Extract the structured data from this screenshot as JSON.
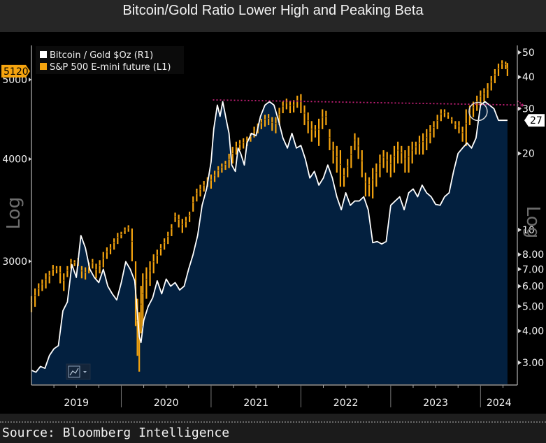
{
  "title": "Bitcoin/Gold Ratio Lower High and Peaking Beta",
  "source": "Source: Bloomberg Intelligence",
  "chart_controls": {
    "chart_type_icon": "line-chart-icon",
    "dropdown_icon": "chevron-down-icon"
  },
  "colors": {
    "background": "#000000",
    "area_fill": "#03203f",
    "bitcoin_line": "#ffffff",
    "sp500_bars": "#f5a40f",
    "trendline": "#c8207a",
    "badge_orange": "#f5a40f",
    "axis": "#b4b4b4"
  },
  "chart_data": {
    "type": "line",
    "title": "Bitcoin/Gold Ratio Lower High and Peaking Beta",
    "x_axis": {
      "type": "time",
      "range": [
        2019.0,
        2024.43
      ],
      "tick_labels": [
        "2019",
        "2020",
        "2021",
        "2022",
        "2023",
        "2024"
      ]
    },
    "y_axis_left": {
      "label": "Log",
      "scale": "log",
      "range": [
        2480,
        5250
      ],
      "tick_labels": [
        "3000",
        "4000",
        "5000"
      ],
      "tick_values": [
        3000,
        4000,
        5000
      ]
    },
    "y_axis_right": {
      "label": "Log",
      "scale": "log",
      "range": [
        2.75,
        54
      ],
      "tick_labels": [
        "3.00",
        "4.00",
        "5.00",
        "6.00",
        "7.00",
        "8.00",
        "10",
        "20",
        "30",
        "40",
        "50"
      ],
      "tick_values": [
        3,
        4,
        5,
        6,
        7,
        8,
        10,
        20,
        30,
        40,
        50
      ]
    },
    "legend": {
      "position": "top-left",
      "entries": [
        {
          "name": "Bitcoin / Gold $Oz (R1)",
          "color": "#ffffff"
        },
        {
          "name": "S&P 500 E-mini future (L1)",
          "color": "#f5a40f"
        }
      ]
    },
    "last_value_badges": {
      "left": "5120",
      "right": "27"
    },
    "series": [
      {
        "name": "Bitcoin / Gold $Oz (R1)",
        "axis": "right",
        "style": "area-line",
        "x": [
          2019.0,
          2019.05,
          2019.1,
          2019.15,
          2019.2,
          2019.25,
          2019.3,
          2019.35,
          2019.4,
          2019.45,
          2019.5,
          2019.55,
          2019.6,
          2019.65,
          2019.7,
          2019.75,
          2019.8,
          2019.85,
          2019.9,
          2019.95,
          2020.0,
          2020.05,
          2020.1,
          2020.15,
          2020.2,
          2020.22,
          2020.25,
          2020.3,
          2020.35,
          2020.4,
          2020.45,
          2020.5,
          2020.55,
          2020.6,
          2020.65,
          2020.7,
          2020.75,
          2020.8,
          2020.85,
          2020.9,
          2020.95,
          2021.0,
          2021.03,
          2021.07,
          2021.1,
          2021.13,
          2021.17,
          2021.2,
          2021.23,
          2021.27,
          2021.3,
          2021.33,
          2021.37,
          2021.4,
          2021.45,
          2021.5,
          2021.55,
          2021.6,
          2021.65,
          2021.7,
          2021.75,
          2021.8,
          2021.85,
          2021.9,
          2021.95,
          2022.0,
          2022.05,
          2022.1,
          2022.15,
          2022.2,
          2022.25,
          2022.3,
          2022.35,
          2022.4,
          2022.45,
          2022.5,
          2022.55,
          2022.6,
          2022.65,
          2022.7,
          2022.75,
          2022.8,
          2022.85,
          2022.9,
          2022.95,
          2023.0,
          2023.05,
          2023.1,
          2023.15,
          2023.2,
          2023.25,
          2023.3,
          2023.35,
          2023.4,
          2023.45,
          2023.5,
          2023.55,
          2023.6,
          2023.65,
          2023.7,
          2023.75,
          2023.8,
          2023.85,
          2023.9,
          2023.95,
          2024.0,
          2024.05,
          2024.1,
          2024.15,
          2024.2,
          2024.25,
          2024.3
        ],
        "values": [
          2.8,
          2.75,
          2.9,
          2.85,
          3.2,
          3.4,
          3.5,
          4.8,
          5.2,
          7.3,
          6.5,
          9.5,
          8.5,
          7.0,
          6.5,
          6.2,
          7.0,
          6.0,
          5.6,
          5.3,
          6.2,
          7.5,
          7.0,
          6.3,
          3.8,
          3.6,
          4.4,
          5.0,
          5.4,
          6.3,
          5.6,
          6.4,
          6.0,
          6.2,
          5.8,
          6.0,
          7.0,
          8.0,
          9.5,
          12.5,
          14.5,
          18.5,
          25,
          31,
          28,
          32,
          27,
          24,
          18,
          17,
          21,
          20,
          18,
          22,
          24,
          23.5,
          28,
          31,
          32,
          31,
          27,
          23,
          21,
          24,
          21,
          21.5,
          19,
          16,
          17,
          15,
          16,
          18,
          16,
          13.5,
          12,
          14,
          12.5,
          13,
          13,
          13.5,
          12,
          8.9,
          9.0,
          8.8,
          9.0,
          12.5,
          13,
          13.5,
          12,
          14,
          14.5,
          13.5,
          15,
          14,
          13.5,
          12.6,
          12.5,
          13.5,
          14,
          17,
          20,
          21,
          22,
          21,
          23,
          31,
          32,
          31,
          30,
          27,
          27,
          27
        ]
      },
      {
        "name": "S&P 500 E-mini future (L1)",
        "axis": "left",
        "style": "ohlc-bars",
        "x": [
          2019.0,
          2019.04,
          2019.08,
          2019.12,
          2019.16,
          2019.2,
          2019.24,
          2019.28,
          2019.32,
          2019.36,
          2019.4,
          2019.44,
          2019.48,
          2019.52,
          2019.56,
          2019.6,
          2019.64,
          2019.68,
          2019.72,
          2019.76,
          2019.8,
          2019.84,
          2019.88,
          2019.92,
          2019.96,
          2020.0,
          2020.04,
          2020.08,
          2020.12,
          2020.16,
          2020.18,
          2020.2,
          2020.22,
          2020.24,
          2020.28,
          2020.32,
          2020.36,
          2020.4,
          2020.44,
          2020.48,
          2020.52,
          2020.56,
          2020.6,
          2020.64,
          2020.68,
          2020.72,
          2020.76,
          2020.8,
          2020.84,
          2020.88,
          2020.92,
          2020.96,
          2021.0,
          2021.04,
          2021.08,
          2021.12,
          2021.16,
          2021.2,
          2021.24,
          2021.28,
          2021.32,
          2021.36,
          2021.4,
          2021.44,
          2021.48,
          2021.52,
          2021.56,
          2021.6,
          2021.64,
          2021.68,
          2021.72,
          2021.76,
          2021.8,
          2021.84,
          2021.88,
          2021.92,
          2021.96,
          2022.0,
          2022.04,
          2022.08,
          2022.12,
          2022.16,
          2022.2,
          2022.24,
          2022.28,
          2022.32,
          2022.36,
          2022.4,
          2022.44,
          2022.48,
          2022.52,
          2022.56,
          2022.6,
          2022.64,
          2022.68,
          2022.72,
          2022.76,
          2022.8,
          2022.84,
          2022.88,
          2022.92,
          2022.96,
          2023.0,
          2023.04,
          2023.08,
          2023.12,
          2023.16,
          2023.2,
          2023.24,
          2023.28,
          2023.32,
          2023.36,
          2023.4,
          2023.44,
          2023.48,
          2023.52,
          2023.56,
          2023.6,
          2023.64,
          2023.68,
          2023.72,
          2023.76,
          2023.8,
          2023.84,
          2023.88,
          2023.92,
          2023.96,
          2024.0,
          2024.04,
          2024.08,
          2024.12,
          2024.16,
          2024.2,
          2024.24,
          2024.28,
          2024.3
        ],
        "low": [
          2600,
          2640,
          2720,
          2760,
          2780,
          2820,
          2880,
          2900,
          2820,
          2760,
          2870,
          2940,
          2960,
          2960,
          2860,
          2850,
          2900,
          2940,
          2860,
          2900,
          2950,
          3020,
          3060,
          3100,
          3150,
          3200,
          3240,
          3260,
          3000,
          2500,
          2300,
          2200,
          2450,
          2500,
          2700,
          2800,
          2900,
          2980,
          3050,
          3100,
          3150,
          3220,
          3350,
          3300,
          3250,
          3300,
          3350,
          3450,
          3550,
          3600,
          3650,
          3700,
          3680,
          3750,
          3800,
          3850,
          3880,
          3900,
          3950,
          4050,
          4100,
          4120,
          4150,
          4200,
          4250,
          4300,
          4350,
          4380,
          4400,
          4330,
          4300,
          4400,
          4550,
          4600,
          4550,
          4560,
          4620,
          4550,
          4400,
          4300,
          4200,
          4250,
          4150,
          4350,
          4400,
          4100,
          3950,
          3850,
          3700,
          3700,
          3800,
          3900,
          4100,
          4000,
          3800,
          3600,
          3600,
          3580,
          3700,
          3800,
          3900,
          3850,
          3800,
          3850,
          3950,
          3950,
          3850,
          3850,
          3950,
          4050,
          4050,
          4050,
          4100,
          4180,
          4250,
          4350,
          4450,
          4500,
          4480,
          4420,
          4350,
          4300,
          4200,
          4150,
          4400,
          4500,
          4580,
          4650,
          4700,
          4750,
          4850,
          4950,
          5050,
          5150,
          5150,
          5050,
          5000
        ],
        "high": [
          2720,
          2780,
          2820,
          2850,
          2900,
          2920,
          2970,
          2960,
          2960,
          2900,
          2960,
          3020,
          3010,
          3030,
          2960,
          2950,
          2990,
          3020,
          2980,
          3010,
          3080,
          3120,
          3150,
          3200,
          3250,
          3260,
          3300,
          3320,
          3290,
          3000,
          2700,
          2600,
          2800,
          2900,
          2950,
          3000,
          3060,
          3100,
          3150,
          3200,
          3260,
          3330,
          3440,
          3420,
          3380,
          3400,
          3450,
          3600,
          3680,
          3720,
          3760,
          3800,
          3830,
          3870,
          3920,
          3950,
          3980,
          4060,
          4140,
          4200,
          4220,
          4240,
          4260,
          4300,
          4380,
          4420,
          4480,
          4530,
          4540,
          4500,
          4500,
          4620,
          4700,
          4740,
          4710,
          4720,
          4780,
          4800,
          4650,
          4560,
          4450,
          4400,
          4480,
          4600,
          4580,
          4350,
          4200,
          4150,
          4100,
          3900,
          4000,
          4150,
          4300,
          4250,
          4100,
          3850,
          3800,
          3900,
          3950,
          4050,
          4100,
          4080,
          4050,
          4150,
          4200,
          4150,
          4100,
          4150,
          4200,
          4200,
          4270,
          4300,
          4350,
          4400,
          4450,
          4530,
          4600,
          4600,
          4560,
          4500,
          4450,
          4450,
          4380,
          4600,
          4650,
          4700,
          4780,
          4850,
          4880,
          4950,
          5050,
          5150,
          5230,
          5280,
          5260,
          5240,
          5150
        ]
      }
    ],
    "annotations": [
      {
        "type": "trendline",
        "description": "dotted magenta lower-high line from 2021 peak extending right",
        "from": {
          "x": 2021.02,
          "y": 32.5
        },
        "to": {
          "x": 2024.48,
          "y": 31.0
        },
        "axis": "right"
      },
      {
        "type": "circle",
        "description": "highlight where S&P 500 crosses trendline",
        "at": {
          "x": 2023.95,
          "y_left": 4700
        }
      }
    ]
  }
}
